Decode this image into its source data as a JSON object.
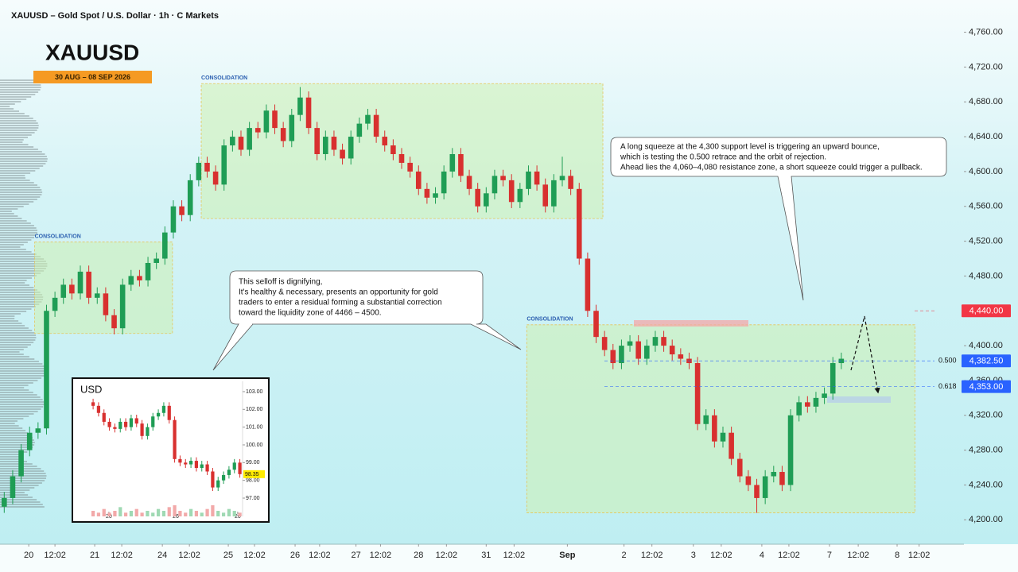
{
  "chart_data": [
    {
      "type": "candlestick",
      "title": "XAUUSD – Gold Spot / U.S. Dollar · 1h · C Markets",
      "symbol": "XAUUSD",
      "date_range": "30 AUG – 08 SEP 2026",
      "up_color": "#1f9d55",
      "down_color": "#d8302f",
      "open": [
        4215,
        4225,
        4250,
        4280,
        4300,
        4305,
        4440,
        4455,
        4470,
        4460,
        4485,
        4455,
        4460,
        4435,
        4420,
        4470,
        4480,
        4475,
        4495,
        4500,
        4530,
        4560,
        4550,
        4590,
        4610,
        4600,
        4585,
        4630,
        4640,
        4625,
        4650,
        4645,
        4670,
        4650,
        4635,
        4665,
        4685,
        4650,
        4620,
        4640,
        4625,
        4615,
        4640,
        4655,
        4665,
        4640,
        4630,
        4620,
        4610,
        4600,
        4580,
        4570,
        4575,
        4600,
        4620,
        4595,
        4580,
        4560,
        4575,
        4595,
        4590,
        4565,
        4580,
        4600,
        4585,
        4560,
        4590,
        4595,
        4580,
        4500,
        4440,
        4410,
        4395,
        4380,
        4400,
        4405,
        4385,
        4400,
        4410,
        4400,
        4390,
        4385,
        4380,
        4310,
        4320,
        4290,
        4300,
        4270,
        4250,
        4240,
        4225,
        4250,
        4255,
        4240,
        4320,
        4335,
        4330,
        4340,
        4345,
        4380
      ],
      "high": [
        4232,
        4257,
        4287,
        4307,
        4312,
        4447,
        4462,
        4477,
        4477,
        4492,
        4492,
        4467,
        4467,
        4442,
        4477,
        4487,
        4487,
        4502,
        4507,
        4537,
        4567,
        4567,
        4597,
        4617,
        4617,
        4607,
        4637,
        4647,
        4647,
        4657,
        4657,
        4677,
        4677,
        4657,
        4672,
        4697,
        4692,
        4657,
        4647,
        4647,
        4632,
        4647,
        4662,
        4672,
        4672,
        4647,
        4637,
        4627,
        4617,
        4607,
        4587,
        4582,
        4607,
        4627,
        4627,
        4602,
        4587,
        4582,
        4602,
        4602,
        4597,
        4587,
        4607,
        4607,
        4592,
        4597,
        4617,
        4602,
        4587,
        4507,
        4447,
        4417,
        4402,
        4407,
        4412,
        4412,
        4407,
        4417,
        4417,
        4407,
        4397,
        4392,
        4387,
        4327,
        4327,
        4307,
        4307,
        4277,
        4257,
        4247,
        4257,
        4262,
        4262,
        4327,
        4342,
        4342,
        4347,
        4352,
        4387,
        4392
      ],
      "low": [
        4208,
        4218,
        4243,
        4273,
        4293,
        4298,
        4433,
        4448,
        4453,
        4453,
        4448,
        4448,
        4428,
        4413,
        4413,
        4463,
        4468,
        4468,
        4488,
        4493,
        4523,
        4543,
        4543,
        4583,
        4593,
        4578,
        4578,
        4623,
        4618,
        4618,
        4638,
        4638,
        4643,
        4628,
        4628,
        4658,
        4643,
        4613,
        4613,
        4618,
        4608,
        4608,
        4633,
        4648,
        4633,
        4623,
        4613,
        4603,
        4593,
        4573,
        4563,
        4563,
        4568,
        4593,
        4588,
        4573,
        4553,
        4553,
        4568,
        4583,
        4558,
        4558,
        4573,
        4578,
        4553,
        4553,
        4583,
        4573,
        4493,
        4433,
        4403,
        4388,
        4373,
        4373,
        4393,
        4378,
        4378,
        4393,
        4393,
        4383,
        4378,
        4373,
        4303,
        4303,
        4283,
        4283,
        4263,
        4243,
        4233,
        4208,
        4218,
        4243,
        4233,
        4233,
        4313,
        4323,
        4323,
        4333,
        4338,
        4373
      ],
      "close": [
        4225,
        4250,
        4280,
        4300,
        4305,
        4440,
        4455,
        4470,
        4460,
        4485,
        4455,
        4460,
        4435,
        4420,
        4470,
        4480,
        4475,
        4495,
        4500,
        4530,
        4560,
        4550,
        4590,
        4610,
        4600,
        4585,
        4630,
        4640,
        4625,
        4650,
        4645,
        4670,
        4650,
        4635,
        4665,
        4685,
        4650,
        4620,
        4640,
        4625,
        4615,
        4640,
        4655,
        4665,
        4640,
        4630,
        4620,
        4610,
        4600,
        4580,
        4570,
        4575,
        4600,
        4620,
        4595,
        4580,
        4560,
        4575,
        4595,
        4590,
        4565,
        4580,
        4600,
        4585,
        4560,
        4590,
        4595,
        4580,
        4500,
        4440,
        4410,
        4395,
        4380,
        4400,
        4405,
        4385,
        4400,
        4410,
        4400,
        4390,
        4385,
        4380,
        4310,
        4320,
        4290,
        4300,
        4270,
        4250,
        4240,
        4225,
        4250,
        4255,
        4240,
        4320,
        4335,
        4330,
        4340,
        4345,
        4380,
        4385
      ],
      "xlim": [
        0,
        114
      ],
      "xticks": [
        {
          "value": 3.4,
          "label": "20"
        },
        {
          "value": 6.5,
          "label": "12:02"
        },
        {
          "value": 11.2,
          "label": "21"
        },
        {
          "value": 14.4,
          "label": "12:02"
        },
        {
          "value": 19.2,
          "label": "24"
        },
        {
          "value": 22.4,
          "label": "12:02"
        },
        {
          "value": 27,
          "label": "25"
        },
        {
          "value": 30.1,
          "label": "12:02"
        },
        {
          "value": 34.9,
          "label": "26"
        },
        {
          "value": 37.8,
          "label": "12:02"
        },
        {
          "value": 42.1,
          "label": "27"
        },
        {
          "value": 45,
          "label": "12:02"
        },
        {
          "value": 49.5,
          "label": "28"
        },
        {
          "value": 52.8,
          "label": "12:02"
        },
        {
          "value": 57.5,
          "label": "31"
        },
        {
          "value": 60.8,
          "label": "12:02"
        },
        {
          "value": 67.1,
          "label": "Sep"
        },
        {
          "value": 73.8,
          "label": "2"
        },
        {
          "value": 77.1,
          "label": "12:02"
        },
        {
          "value": 82,
          "label": "3"
        },
        {
          "value": 85.3,
          "label": "12:02"
        },
        {
          "value": 90.1,
          "label": "4"
        },
        {
          "value": 93.3,
          "label": "12:02"
        },
        {
          "value": 98.1,
          "label": "7"
        },
        {
          "value": 101.5,
          "label": "12:02"
        },
        {
          "value": 106.1,
          "label": "8"
        },
        {
          "value": 108.7,
          "label": "12:02"
        }
      ],
      "ylim": [
        4172,
        4797
      ],
      "yticks": [
        {
          "value": 4200,
          "label": "4,200.00"
        },
        {
          "value": 4240,
          "label": "4,240.00"
        },
        {
          "value": 4280,
          "label": "4,280.00"
        },
        {
          "value": 4320,
          "label": "4,320.00"
        },
        {
          "value": 4360,
          "label": "4,360.00"
        },
        {
          "value": 4400,
          "label": "4,400.00"
        },
        {
          "value": 4440,
          "label": "4,440.00"
        },
        {
          "value": 4480,
          "label": "4,480.00"
        },
        {
          "value": 4520,
          "label": "4,520.00"
        },
        {
          "value": 4560,
          "label": "4,560.00"
        },
        {
          "value": 4600,
          "label": "4,600.00"
        },
        {
          "value": 4640,
          "label": "4,640.00"
        },
        {
          "value": 4680,
          "label": "4,680.00"
        },
        {
          "value": 4720,
          "label": "4,720.00"
        },
        {
          "value": 4760,
          "label": "4,760.00"
        }
      ],
      "zones": [
        {
          "label": "CONSOLIDATION",
          "x": [
            4.1,
            20.4
          ],
          "y": [
            4414,
            4519
          ]
        },
        {
          "label": "CONSOLIDATION",
          "x": [
            23.8,
            71.3
          ],
          "y": [
            4546,
            4701
          ]
        },
        {
          "label": "CONSOLIDATION",
          "x": [
            62.3,
            108.2
          ],
          "y": [
            4208,
            4424
          ]
        }
      ],
      "levels": [
        {
          "value": 4440,
          "label": "4,440.00",
          "color": "#f23645"
        },
        {
          "value": 4382.5,
          "label": "4,382.50",
          "fib": "0.500",
          "color": "#2962ff"
        },
        {
          "value": 4353,
          "label": "4,353.00",
          "fib": "0.618",
          "color": "#2962ff"
        }
      ],
      "annotations": [
        [
          "This selloff is dignifying,",
          "It's healthy & necessary, presents an opportunity for gold",
          "traders to enter a residual forming a substantial correction",
          "toward the liquidity zone of 4466 – 4500."
        ],
        [
          "A long squeeze at the 4,300 support level is triggering an upward bounce,",
          "which is testing the 0.500 retrace and the orbit of rejection.",
          "Ahead lies the 4,060–4,080 resistance zone, a short squeeze could trigger a pullback."
        ]
      ]
    },
    {
      "type": "candlestick",
      "title": "USD",
      "up_color": "#1f9d55",
      "down_color": "#d8302f",
      "open": [
        102.4,
        102.2,
        101.8,
        101.3,
        101.0,
        100.9,
        101.3,
        101.0,
        101.5,
        101.2,
        100.5,
        101.0,
        101.6,
        101.8,
        102.2,
        101.4,
        99.2,
        99.0,
        98.9,
        99.1,
        98.7,
        98.9,
        98.5,
        97.6,
        98.0,
        98.3,
        98.6,
        99.0
      ],
      "high": [
        102.6,
        102.4,
        102.0,
        101.5,
        101.2,
        101.5,
        101.5,
        101.7,
        101.7,
        101.4,
        101.2,
        101.8,
        102.0,
        102.4,
        102.4,
        101.6,
        99.4,
        99.2,
        99.3,
        99.3,
        99.1,
        99.1,
        98.7,
        98.2,
        98.5,
        98.8,
        99.2,
        99.2
      ],
      "low": [
        102.0,
        101.6,
        101.1,
        100.8,
        100.7,
        100.7,
        100.8,
        100.8,
        101.0,
        100.3,
        100.3,
        100.8,
        101.4,
        101.6,
        101.2,
        99.0,
        98.8,
        98.7,
        98.7,
        98.5,
        98.5,
        98.3,
        97.4,
        97.4,
        97.8,
        98.1,
        98.4,
        98.15
      ],
      "close": [
        102.2,
        101.8,
        101.3,
        101.0,
        100.9,
        101.3,
        101.0,
        101.5,
        101.2,
        100.5,
        101.0,
        101.6,
        101.8,
        102.2,
        101.4,
        99.2,
        99.0,
        98.9,
        99.1,
        98.7,
        98.9,
        98.5,
        97.6,
        98.0,
        98.3,
        98.6,
        99.0,
        98.35
      ],
      "volume": [
        3,
        2,
        4,
        2,
        3,
        5,
        2,
        3,
        4,
        2,
        3,
        2,
        4,
        3,
        5,
        6,
        3,
        2,
        4,
        3,
        2,
        4,
        6,
        3,
        2,
        4,
        3,
        2
      ],
      "xlim": [
        -2,
        28
      ],
      "xticks": [
        {
          "value": 3.4,
          "label": "20"
        },
        {
          "value": 15.7,
          "label": "26"
        },
        {
          "value": 27.1,
          "label": "20"
        }
      ],
      "ylim": [
        95.97,
        103.58
      ],
      "yticks": [
        {
          "value": 97,
          "label": "97.00"
        },
        {
          "value": 98,
          "label": "98.00"
        },
        {
          "value": 99,
          "label": "99.00"
        },
        {
          "value": 100,
          "label": "100.00"
        },
        {
          "value": 101,
          "label": "101.00"
        },
        {
          "value": 102,
          "label": "102.00"
        },
        {
          "value": 103,
          "label": "103.00"
        }
      ]
    }
  ]
}
